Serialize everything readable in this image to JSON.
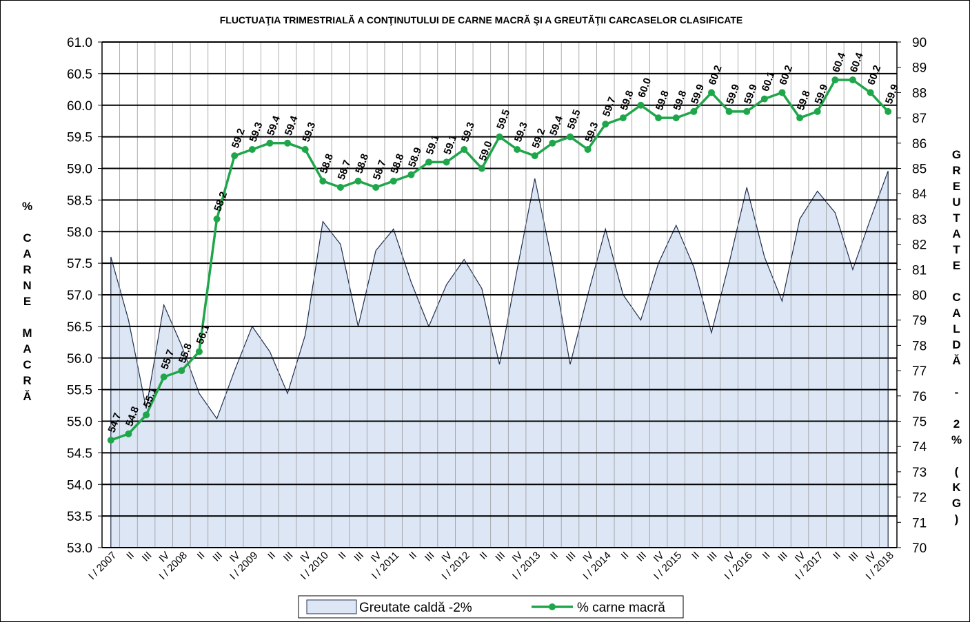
{
  "chart_data": {
    "type": "line",
    "title": "FLUCTUAŢIA TRIMESTRIALĂ  A CONŢINUTULUI  DE CARNE MACRĂ  ŞI A GREUTĂŢII CARCASELOR CLASIFICATE",
    "y_label": "% CARNE MACRĂ",
    "y2_label": "GREUTATE CALDĂ - 2% (KG)",
    "categories": [
      "I / 2007",
      "II",
      "III",
      "IV",
      "I / 2008",
      "II",
      "III",
      "IV",
      "I / 2009",
      "II",
      "III",
      "IV",
      "I / 2010",
      "II",
      "III",
      "IV",
      "I / 2011",
      "II",
      "III",
      "IV",
      "I / 2012",
      "II",
      "III",
      "IV",
      "I / 2013",
      "II",
      "III",
      "IV",
      "I / 2014",
      "II",
      "III",
      "IV",
      "I / 2015",
      "II",
      "III",
      "IV",
      "I / 2016",
      "II",
      "III",
      "IV",
      "I / 2017",
      "II",
      "III",
      "IV",
      "I / 2018"
    ],
    "series": [
      {
        "name": "Greutate caldă -2%",
        "kind": "area",
        "axis": "y2",
        "color": "#dde6f4",
        "line_color": "#1f2f4f",
        "values": [
          81.5,
          79.0,
          75.5,
          79.6,
          78.0,
          76.1,
          75.1,
          77.0,
          78.75,
          77.75,
          76.1,
          78.4,
          82.9,
          82.0,
          78.75,
          81.75,
          82.6,
          80.5,
          78.75,
          80.4,
          81.4,
          80.25,
          77.25,
          81.0,
          84.6,
          81.25,
          77.25,
          80.0,
          82.6,
          80.0,
          79.0,
          81.25,
          82.75,
          81.1,
          78.5,
          81.25,
          84.25,
          81.5,
          79.75,
          83.0,
          84.1,
          83.25,
          81.0,
          83.0,
          84.9
        ]
      },
      {
        "name": "% carne macră",
        "kind": "line",
        "color": "#1fa64a",
        "values": [
          54.7,
          54.8,
          55.1,
          55.7,
          55.8,
          56.1,
          58.2,
          59.2,
          59.3,
          59.4,
          59.4,
          59.3,
          58.8,
          58.7,
          58.8,
          58.7,
          58.8,
          58.9,
          59.1,
          59.1,
          59.3,
          59.0,
          59.5,
          59.3,
          59.2,
          59.4,
          59.5,
          59.3,
          59.7,
          59.8,
          60.0,
          59.8,
          59.8,
          59.9,
          60.2,
          59.9,
          59.9,
          60.1,
          60.2,
          59.8,
          59.9,
          60.4,
          60.4,
          60.2,
          59.9
        ],
        "value_labels": [
          "54.7",
          "54.8",
          "55.1",
          "55.7",
          "55.8",
          "56.1",
          "58.2",
          "59.2",
          "59.3",
          "59.4",
          "59.4",
          "59.3",
          "58.8",
          "58.7",
          "58.8",
          "58.7",
          "58.8",
          "58.9",
          "59.1",
          "59.1",
          "59.3",
          "59.0",
          "59.5",
          "59.3",
          "59.2",
          "59.4",
          "59.5",
          "59.3",
          "59.7",
          "59.8",
          "60.0",
          "59.8",
          "59.8",
          "59.9",
          "60.2",
          "59.9",
          "59.9",
          "60.1",
          "60.2",
          "59.8",
          "59.9",
          "60.4",
          "60.4",
          "60.2",
          "59.9"
        ]
      }
    ],
    "ylim": [
      53,
      61
    ],
    "yticks": [
      {
        "value": 53,
        "label": "53.0"
      },
      {
        "value": 53.5,
        "label": "53.5"
      },
      {
        "value": 54,
        "label": "54.0"
      },
      {
        "value": 54.5,
        "label": "54.5"
      },
      {
        "value": 55,
        "label": "55.0"
      },
      {
        "value": 55.5,
        "label": "55.5"
      },
      {
        "value": 56,
        "label": "56.0"
      },
      {
        "value": 56.5,
        "label": "56.5"
      },
      {
        "value": 57,
        "label": "57.0"
      },
      {
        "value": 57.5,
        "label": "57.5"
      },
      {
        "value": 58,
        "label": "58.0"
      },
      {
        "value": 58.5,
        "label": "58.5"
      },
      {
        "value": 59,
        "label": "59.0"
      },
      {
        "value": 59.5,
        "label": "59.5"
      },
      {
        "value": 60,
        "label": "60.0"
      },
      {
        "value": 60.5,
        "label": "60.5"
      },
      {
        "value": 61,
        "label": "61.0"
      }
    ],
    "y2lim": [
      70,
      90
    ],
    "y2ticks": [
      70,
      71,
      72,
      73,
      74,
      75,
      76,
      77,
      78,
      79,
      80,
      81,
      82,
      83,
      84,
      85,
      86,
      87,
      88,
      89,
      90
    ],
    "grid": true,
    "legend": "bottom"
  }
}
